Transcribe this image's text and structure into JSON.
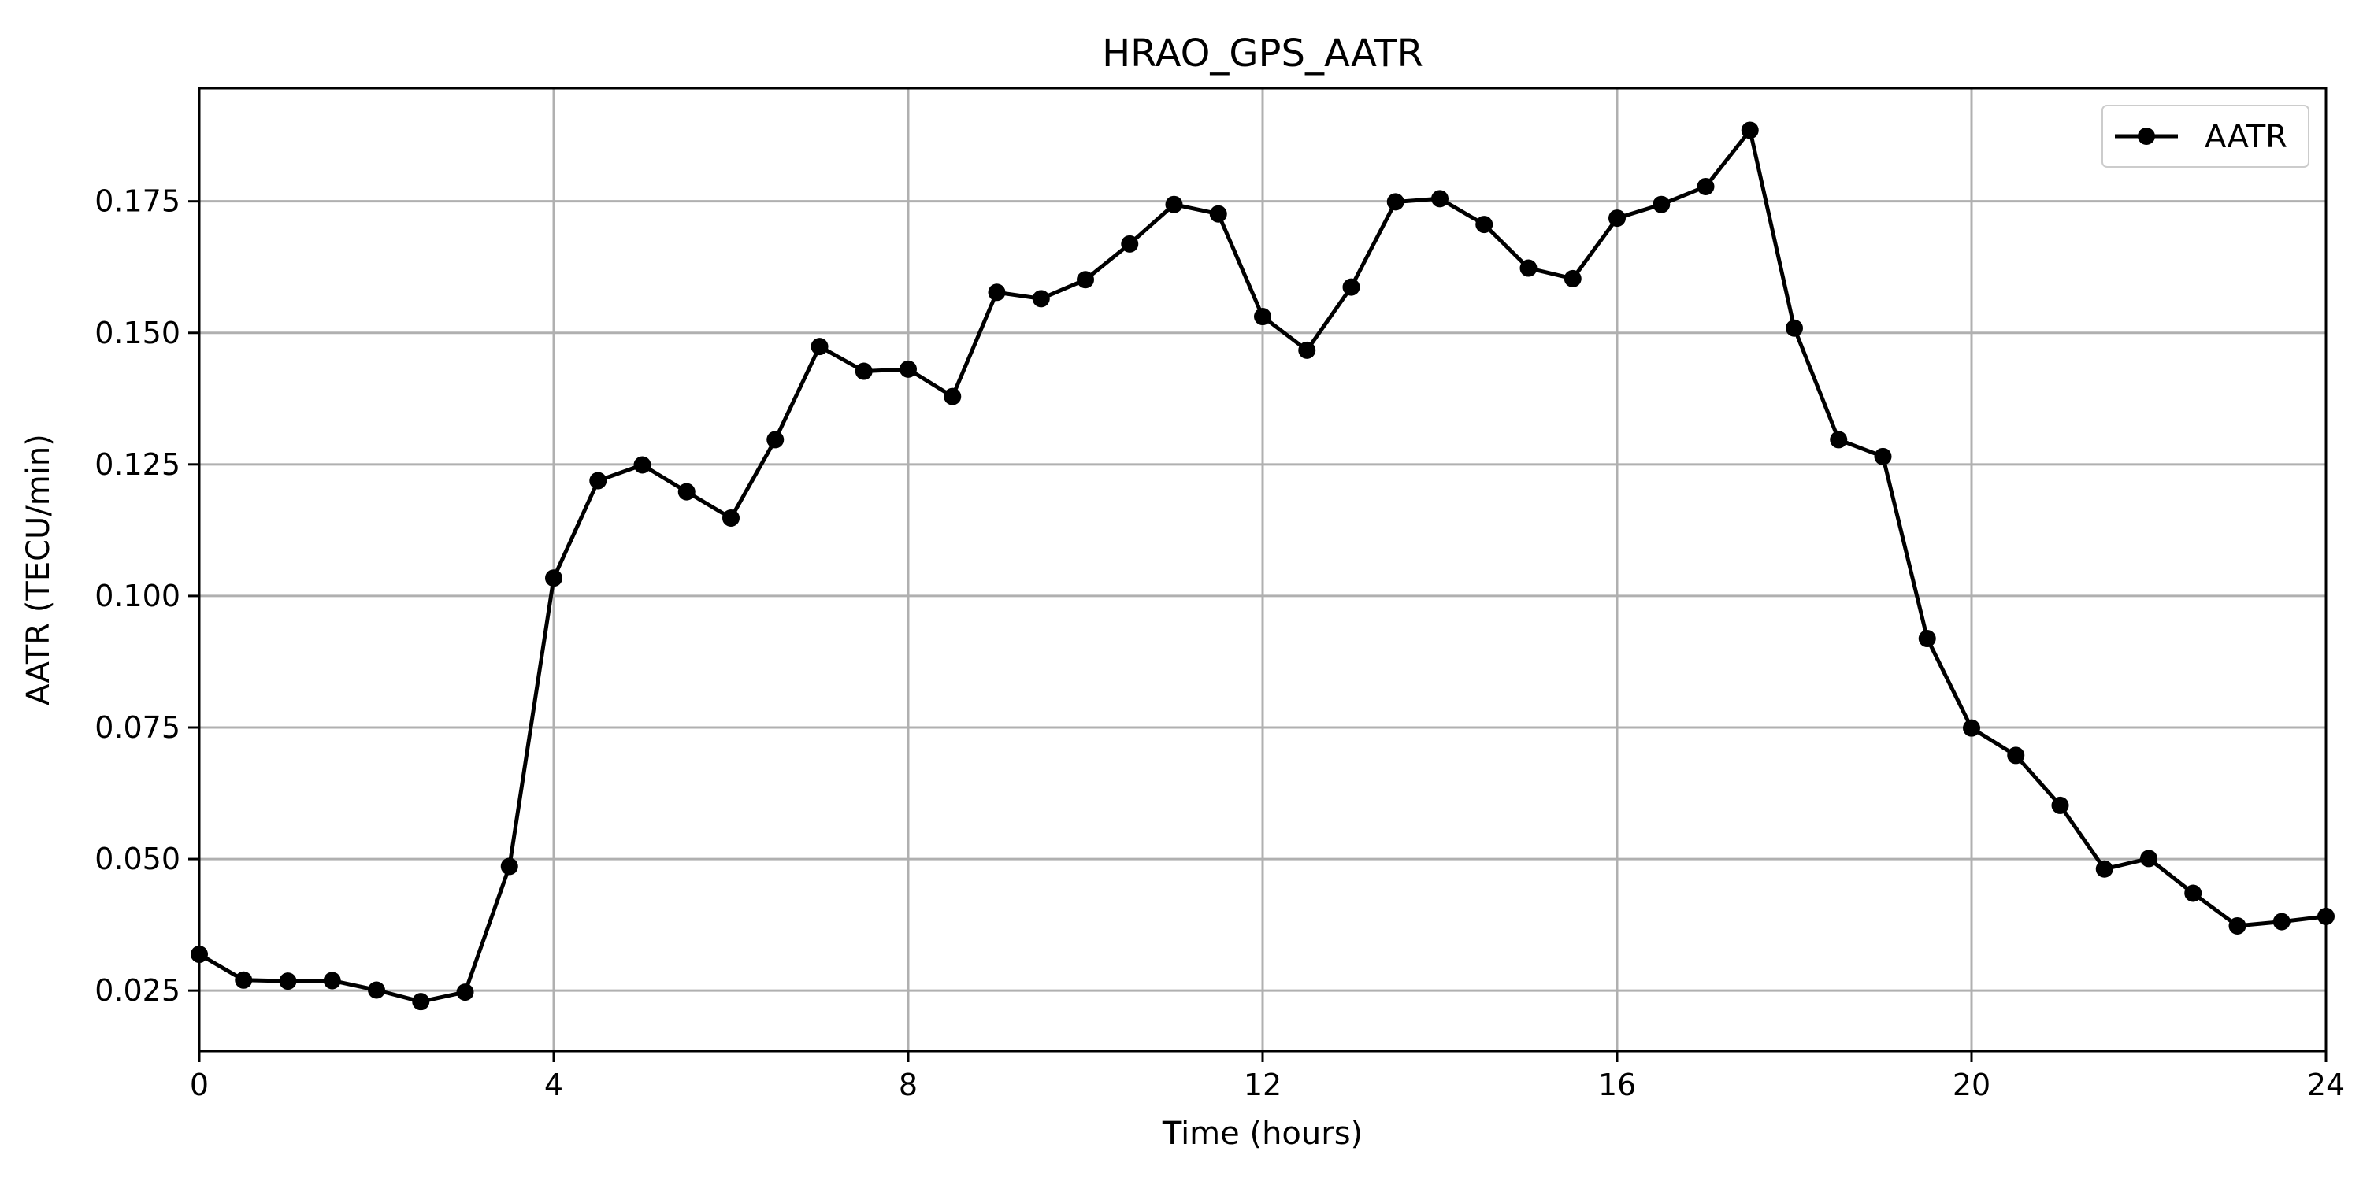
{
  "chart_data": {
    "type": "line",
    "title": "HRAO_GPS_AATR",
    "xlabel": "Time (hours)",
    "ylabel": "AATR (TECU/min)",
    "xlim": [
      0,
      24
    ],
    "ylim": [
      0.0135,
      0.1965
    ],
    "xticks": [
      0,
      4,
      8,
      12,
      16,
      20,
      24
    ],
    "yticks": [
      0.025,
      0.05,
      0.075,
      0.1,
      0.125,
      0.15,
      0.175
    ],
    "ytick_format": "%.3f",
    "grid": true,
    "legend": {
      "placement": "top-right"
    },
    "colors": {
      "line": "#000000",
      "marker": "#000000",
      "grid": "#b0b0b0"
    },
    "series": [
      {
        "name": "AATR",
        "marker": "circle",
        "x": [
          0,
          0.5,
          1,
          1.5,
          2,
          2.5,
          3,
          3.5,
          4,
          4.5,
          5,
          5.5,
          6,
          6.5,
          7,
          7.5,
          8,
          8.5,
          9,
          9.5,
          10,
          10.5,
          11,
          11.5,
          12,
          12.5,
          13,
          13.5,
          14,
          14.5,
          15,
          15.5,
          16,
          16.5,
          17,
          17.5,
          18,
          18.5,
          19,
          19.5,
          20,
          20.5,
          21,
          21.5,
          22,
          22.5,
          23,
          23.5,
          24
        ],
        "y": [
          0.0319,
          0.027,
          0.0268,
          0.0269,
          0.0251,
          0.0229,
          0.0247,
          0.0486,
          0.1034,
          0.1219,
          0.1249,
          0.1198,
          0.1148,
          0.1297,
          0.1474,
          0.1427,
          0.1431,
          0.1379,
          0.1577,
          0.1565,
          0.1601,
          0.1669,
          0.1744,
          0.1726,
          0.1531,
          0.1467,
          0.1587,
          0.1749,
          0.1755,
          0.1706,
          0.1623,
          0.1603,
          0.1718,
          0.1744,
          0.1778,
          0.1885,
          0.1509,
          0.1297,
          0.1265,
          0.0919,
          0.0749,
          0.0697,
          0.0602,
          0.0481,
          0.0501,
          0.0435,
          0.0373,
          0.0381,
          0.0391
        ]
      }
    ]
  }
}
